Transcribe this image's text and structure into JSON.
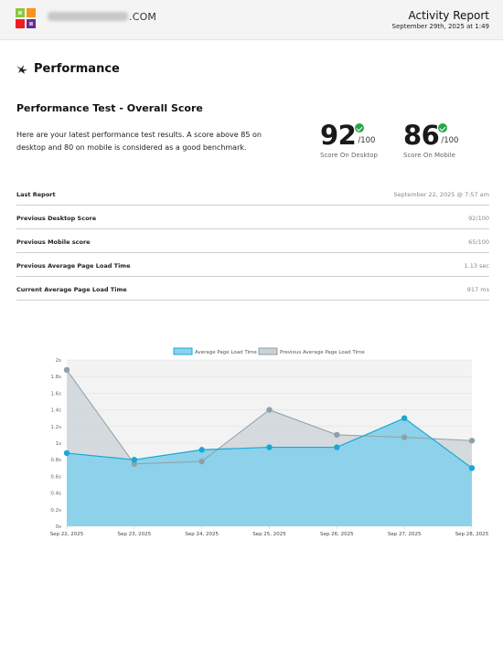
{
  "header": {
    "domain_suffix": ".COM",
    "report_title": "Activity Report",
    "report_date": "September 29th, 2025 at 1:49"
  },
  "section": {
    "icon": "bird-icon",
    "title": "Performance"
  },
  "test": {
    "title": "Performance Test - Overall Score",
    "description": "Here are your latest performance test results. A score above 85 on desktop and 80 on mobile is considered as a good benchmark."
  },
  "scores": {
    "desktop": {
      "value": "92",
      "max": "/100",
      "label": "Score On Desktop",
      "status": "good"
    },
    "mobile": {
      "value": "86",
      "max": "/100",
      "label": "Score On Mobile",
      "status": "good"
    }
  },
  "stats": [
    {
      "label": "Last Report",
      "value": "September 22, 2025 @ 7:57 am"
    },
    {
      "label": "Previous Desktop Score",
      "value": "92/100"
    },
    {
      "label": "Previous Mobile score",
      "value": "65/100"
    },
    {
      "label": "Previous Average Page Load Time",
      "value": "1.13 sec"
    },
    {
      "label": "Current Average Page Load Time",
      "value": "917 ms"
    }
  ],
  "colors": {
    "accent": "#17a9d6",
    "accent_fill": "#8ed1ea",
    "previous_line": "#8fa0a8",
    "previous_fill": "#c9d2d6",
    "good": "#28a745"
  },
  "chart_data": {
    "type": "area",
    "x": [
      "Sep 22, 2025",
      "Sep 23, 2025",
      "Sep 24, 2025",
      "Sep 25, 2025",
      "Sep 26, 2025",
      "Sep 27, 2025",
      "Sep 28, 2025"
    ],
    "y_ticks": [
      "0s",
      "0.2s",
      "0.4s",
      "0.6s",
      "0.8s",
      "1s",
      "1.2s",
      "1.4s",
      "1.6s",
      "1.8s",
      "2s"
    ],
    "ylim": [
      0,
      2
    ],
    "grid": true,
    "legend_position": "top-center",
    "series": [
      {
        "name": "Average Page Load Time",
        "values": [
          0.88,
          0.8,
          0.92,
          0.95,
          0.95,
          1.3,
          0.7
        ],
        "color": "#17a9d6"
      },
      {
        "name": "Previous Average Page Load Time",
        "values": [
          1.88,
          0.75,
          0.78,
          1.4,
          1.1,
          1.07,
          1.03
        ],
        "color": "#8fa0a8"
      }
    ]
  }
}
